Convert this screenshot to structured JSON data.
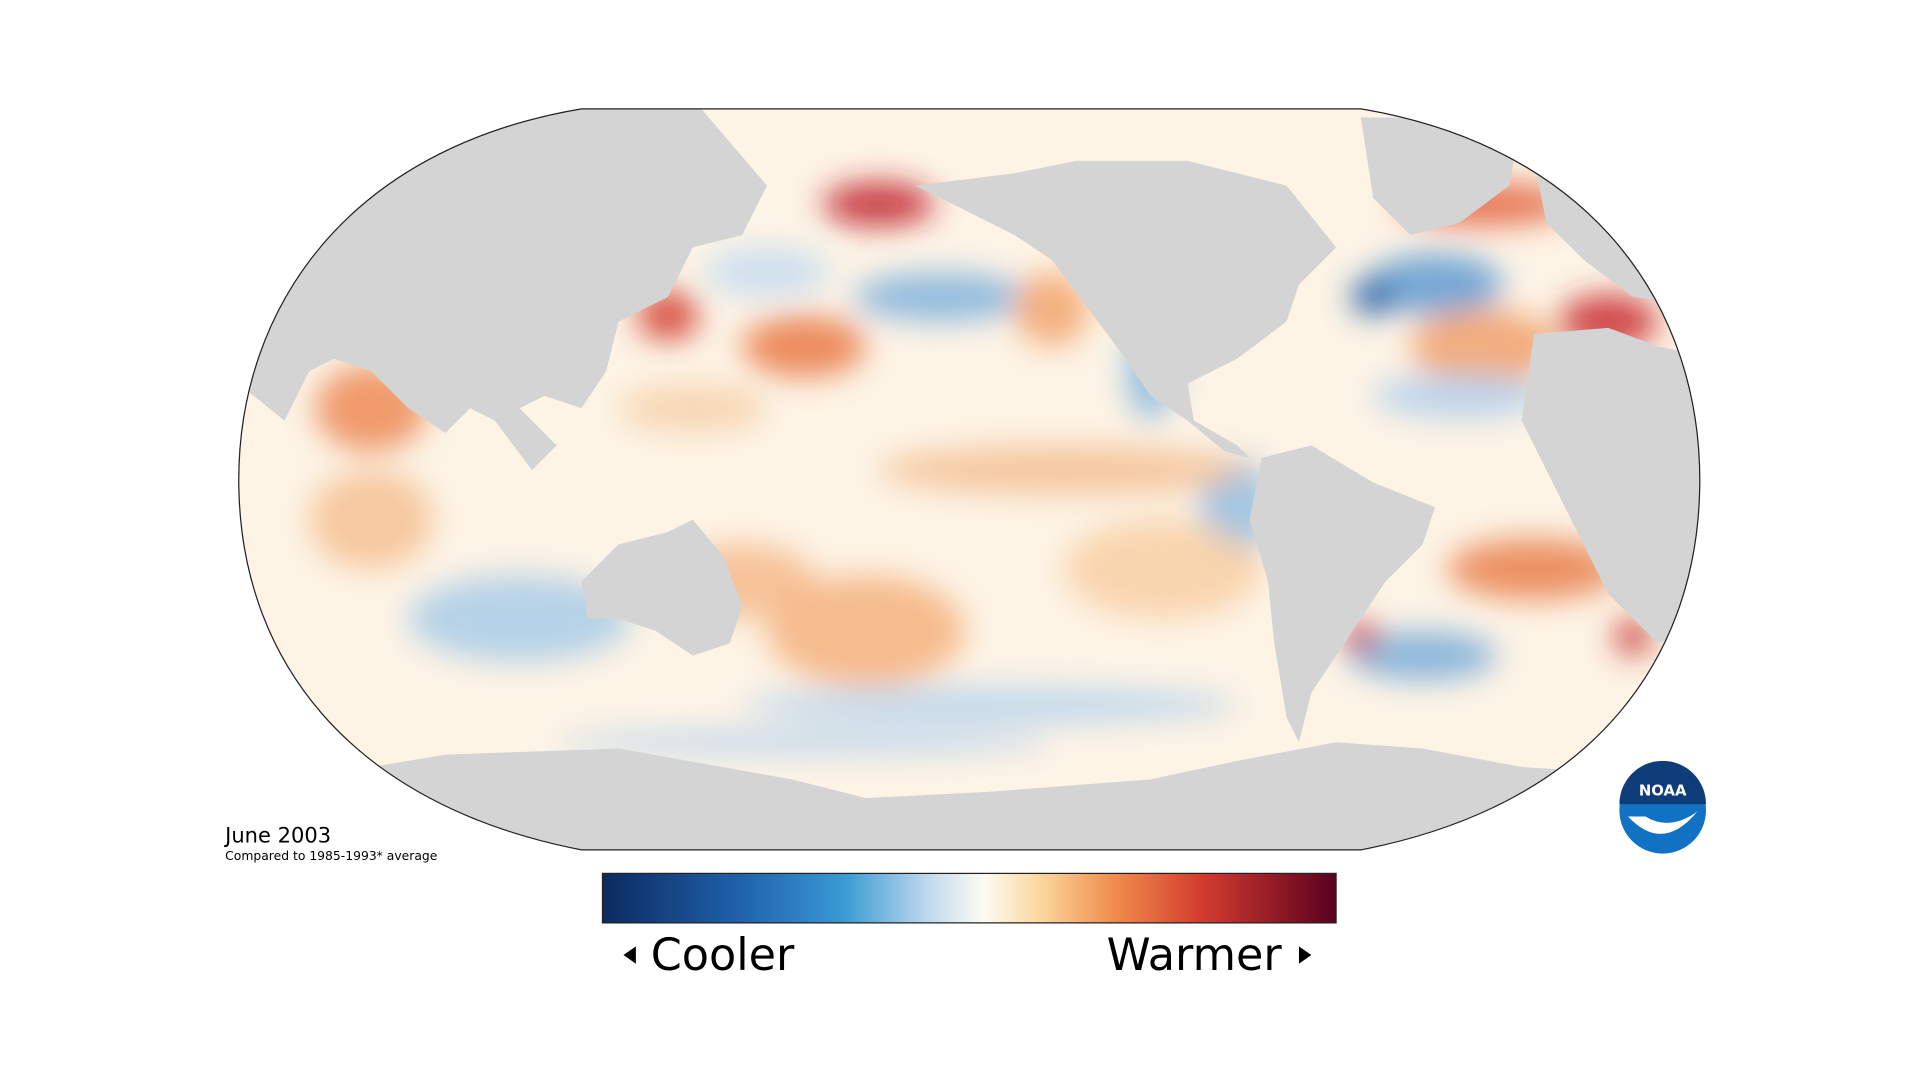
{
  "caption": {
    "date": "June 2003",
    "note": "Compared to 1985-1993* average"
  },
  "legend": {
    "low_label": "Cooler",
    "high_label": "Warmer"
  },
  "logo": {
    "text": "NOAA"
  }
}
